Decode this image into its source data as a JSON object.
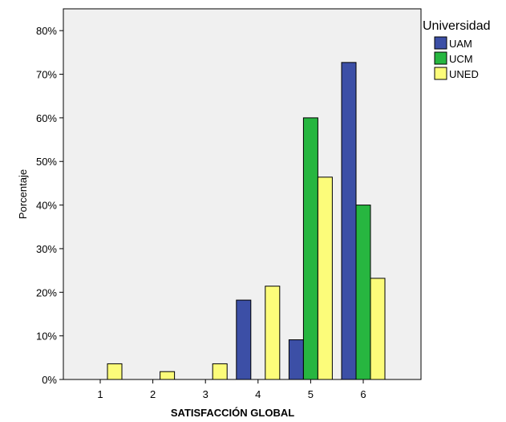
{
  "chart_data": {
    "type": "bar",
    "xlabel": "SATISFACCIÓN GLOBAL",
    "ylabel": "Porcentaje",
    "ylim": [
      0,
      85
    ],
    "yticks": [
      0,
      10,
      20,
      30,
      40,
      50,
      60,
      70,
      80
    ],
    "ytick_labels": [
      "0%",
      "10%",
      "20%",
      "30%",
      "40%",
      "50%",
      "60%",
      "70%",
      "80%"
    ],
    "categories": [
      "1",
      "2",
      "3",
      "4",
      "5",
      "6"
    ],
    "legend_title": "Universidad",
    "legend_position": "top-right",
    "grid": false,
    "series": [
      {
        "name": "UAM",
        "color": "#3c4fa6",
        "values": [
          0,
          0,
          0,
          18.2,
          9.1,
          72.7
        ]
      },
      {
        "name": "UCM",
        "color": "#27b640",
        "values": [
          0,
          0,
          0,
          0,
          60.0,
          40.0
        ]
      },
      {
        "name": "UNED",
        "color": "#fcfc7a",
        "values": [
          3.6,
          1.8,
          3.6,
          21.4,
          46.4,
          23.2
        ]
      }
    ]
  }
}
